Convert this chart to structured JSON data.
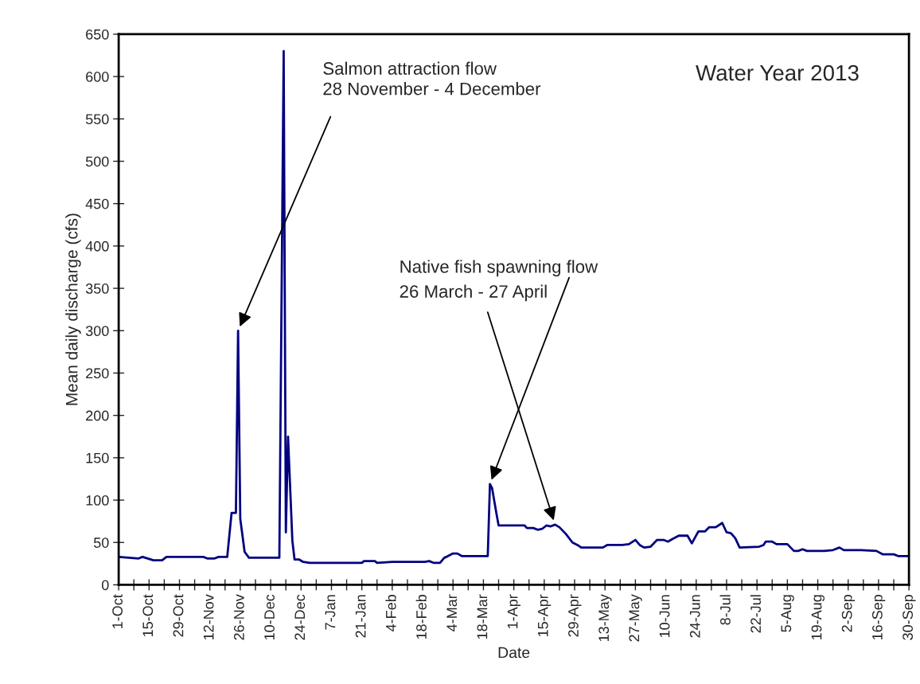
{
  "chart_data": {
    "type": "line",
    "xlabel": "Date",
    "ylabel": "Mean daily discharge (cfs)",
    "x": [
      "2012-10-01",
      "2012-10-10",
      "2012-10-12",
      "2012-10-17",
      "2012-10-21",
      "2012-10-23",
      "2012-11-09",
      "2012-11-11",
      "2012-11-14",
      "2012-11-16",
      "2012-11-20",
      "2012-11-22",
      "2012-11-24",
      "2012-11-25",
      "2012-11-26",
      "2012-11-28",
      "2012-11-30",
      "2012-12-14",
      "2012-12-16",
      "2012-12-17",
      "2012-12-18",
      "2012-12-20",
      "2012-12-21",
      "2012-12-23",
      "2012-12-25",
      "2012-12-28",
      "2013-01-21",
      "2013-01-22",
      "2013-01-27",
      "2013-01-28",
      "2013-02-04",
      "2013-02-19",
      "2013-02-21",
      "2013-02-23",
      "2013-02-26",
      "2013-02-28",
      "2013-03-01",
      "2013-03-04",
      "2013-03-06",
      "2013-03-08",
      "2013-03-20",
      "2013-03-21",
      "2013-03-22",
      "2013-03-24",
      "2013-03-25",
      "2013-04-06",
      "2013-04-07",
      "2013-04-10",
      "2013-04-12",
      "2013-04-14",
      "2013-04-16",
      "2013-04-18",
      "2013-04-20",
      "2013-04-22",
      "2013-04-25",
      "2013-04-28",
      "2013-05-01",
      "2013-05-02",
      "2013-05-12",
      "2013-05-14",
      "2013-05-21",
      "2013-05-24",
      "2013-05-27",
      "2013-05-29",
      "2013-05-31",
      "2013-06-03",
      "2013-06-06",
      "2013-06-09",
      "2013-06-11",
      "2013-06-13",
      "2013-06-16",
      "2013-06-20",
      "2013-06-22",
      "2013-06-25",
      "2013-06-28",
      "2013-06-30",
      "2013-07-03",
      "2013-07-06",
      "2013-07-08",
      "2013-07-10",
      "2013-07-12",
      "2013-07-14",
      "2013-07-23",
      "2013-07-25",
      "2013-07-26",
      "2013-07-29",
      "2013-07-31",
      "2013-08-05",
      "2013-08-08",
      "2013-08-10",
      "2013-08-12",
      "2013-08-14",
      "2013-08-22",
      "2013-08-26",
      "2013-08-29",
      "2013-08-31",
      "2013-09-08",
      "2013-09-15",
      "2013-09-18",
      "2013-09-23",
      "2013-09-25",
      "2013-09-30"
    ],
    "series": [
      {
        "color": "#000080",
        "values": [
          33,
          31,
          33,
          29,
          29,
          33,
          33,
          31,
          31,
          33,
          33,
          85,
          85,
          300,
          78,
          39,
          32,
          32,
          630,
          62,
          175,
          52,
          30,
          30,
          27,
          26,
          26,
          28,
          28,
          26,
          27,
          27,
          28,
          26,
          26,
          32,
          33,
          37,
          37,
          34,
          34,
          119,
          114,
          84,
          70,
          70,
          67,
          67,
          65,
          66,
          70,
          69,
          71,
          68,
          60,
          50,
          46,
          44,
          44,
          47,
          47,
          48,
          53,
          47,
          44,
          45,
          53,
          53,
          51,
          54,
          58,
          58,
          49,
          63,
          63,
          68,
          68,
          73,
          62,
          61,
          55,
          44,
          45,
          47,
          51,
          51,
          48,
          48,
          40,
          40,
          42,
          40,
          40,
          41,
          44,
          41,
          41,
          40,
          36,
          36,
          34,
          34
        ]
      }
    ],
    "xlim": [
      "2012-10-01",
      "2013-09-30"
    ],
    "ylim": [
      0,
      650
    ],
    "xticks": [
      {
        "value": "2012-10-01",
        "label": "1-Oct"
      },
      {
        "value": "2012-10-08",
        "label": null
      },
      {
        "value": "2012-10-15",
        "label": "15-Oct"
      },
      {
        "value": "2012-10-22",
        "label": null
      },
      {
        "value": "2012-10-29",
        "label": "29-Oct"
      },
      {
        "value": "2012-11-05",
        "label": null
      },
      {
        "value": "2012-11-12",
        "label": "12-Nov"
      },
      {
        "value": "2012-11-19",
        "label": null
      },
      {
        "value": "2012-11-26",
        "label": "26-Nov"
      },
      {
        "value": "2012-12-03",
        "label": null
      },
      {
        "value": "2012-12-10",
        "label": "10-Dec"
      },
      {
        "value": "2012-12-17",
        "label": null
      },
      {
        "value": "2012-12-24",
        "label": "24-Dec"
      },
      {
        "value": "2012-12-31",
        "label": null
      },
      {
        "value": "2013-01-07",
        "label": "7-Jan"
      },
      {
        "value": "2013-01-14",
        "label": null
      },
      {
        "value": "2013-01-21",
        "label": "21-Jan"
      },
      {
        "value": "2013-01-28",
        "label": null
      },
      {
        "value": "2013-02-04",
        "label": "4-Feb"
      },
      {
        "value": "2013-02-11",
        "label": null
      },
      {
        "value": "2013-02-18",
        "label": "18-Feb"
      },
      {
        "value": "2013-02-25",
        "label": null
      },
      {
        "value": "2013-03-04",
        "label": "4-Mar"
      },
      {
        "value": "2013-03-11",
        "label": null
      },
      {
        "value": "2013-03-18",
        "label": "18-Mar"
      },
      {
        "value": "2013-03-25",
        "label": null
      },
      {
        "value": "2013-04-01",
        "label": "1-Apr"
      },
      {
        "value": "2013-04-08",
        "label": null
      },
      {
        "value": "2013-04-15",
        "label": "15-Apr"
      },
      {
        "value": "2013-04-22",
        "label": null
      },
      {
        "value": "2013-04-29",
        "label": "29-Apr"
      },
      {
        "value": "2013-05-06",
        "label": null
      },
      {
        "value": "2013-05-13",
        "label": "13-May"
      },
      {
        "value": "2013-05-20",
        "label": null
      },
      {
        "value": "2013-05-27",
        "label": "27-May"
      },
      {
        "value": "2013-06-03",
        "label": null
      },
      {
        "value": "2013-06-10",
        "label": "10-Jun"
      },
      {
        "value": "2013-06-17",
        "label": null
      },
      {
        "value": "2013-06-24",
        "label": "24-Jun"
      },
      {
        "value": "2013-07-01",
        "label": null
      },
      {
        "value": "2013-07-08",
        "label": "8-Jul"
      },
      {
        "value": "2013-07-15",
        "label": null
      },
      {
        "value": "2013-07-22",
        "label": "22-Jul"
      },
      {
        "value": "2013-07-29",
        "label": null
      },
      {
        "value": "2013-08-05",
        "label": "5-Aug"
      },
      {
        "value": "2013-08-12",
        "label": null
      },
      {
        "value": "2013-08-19",
        "label": "19-Aug"
      },
      {
        "value": "2013-08-26",
        "label": null
      },
      {
        "value": "2013-09-02",
        "label": "2-Sep"
      },
      {
        "value": "2013-09-09",
        "label": null
      },
      {
        "value": "2013-09-16",
        "label": "16-Sep"
      },
      {
        "value": "2013-09-23",
        "label": null
      },
      {
        "value": "2013-09-30",
        "label": "30-Sep"
      }
    ],
    "yticks": [
      0,
      50,
      100,
      150,
      200,
      250,
      300,
      350,
      400,
      450,
      500,
      550,
      600,
      650
    ],
    "grid": false,
    "legend": false,
    "marker": "none",
    "line_style": "solid",
    "annotations": [
      "Water Year 2013",
      {
        "text": "Salmon attraction flow\n28 November - 4 December",
        "x": "2012-11-25",
        "y": 300
      },
      {
        "text": "Native fish spawning flow",
        "x": "2013-03-21",
        "y": 119
      },
      {
        "text": "26 March - 27 April",
        "x": "2013-04-20",
        "y": 71
      }
    ]
  }
}
